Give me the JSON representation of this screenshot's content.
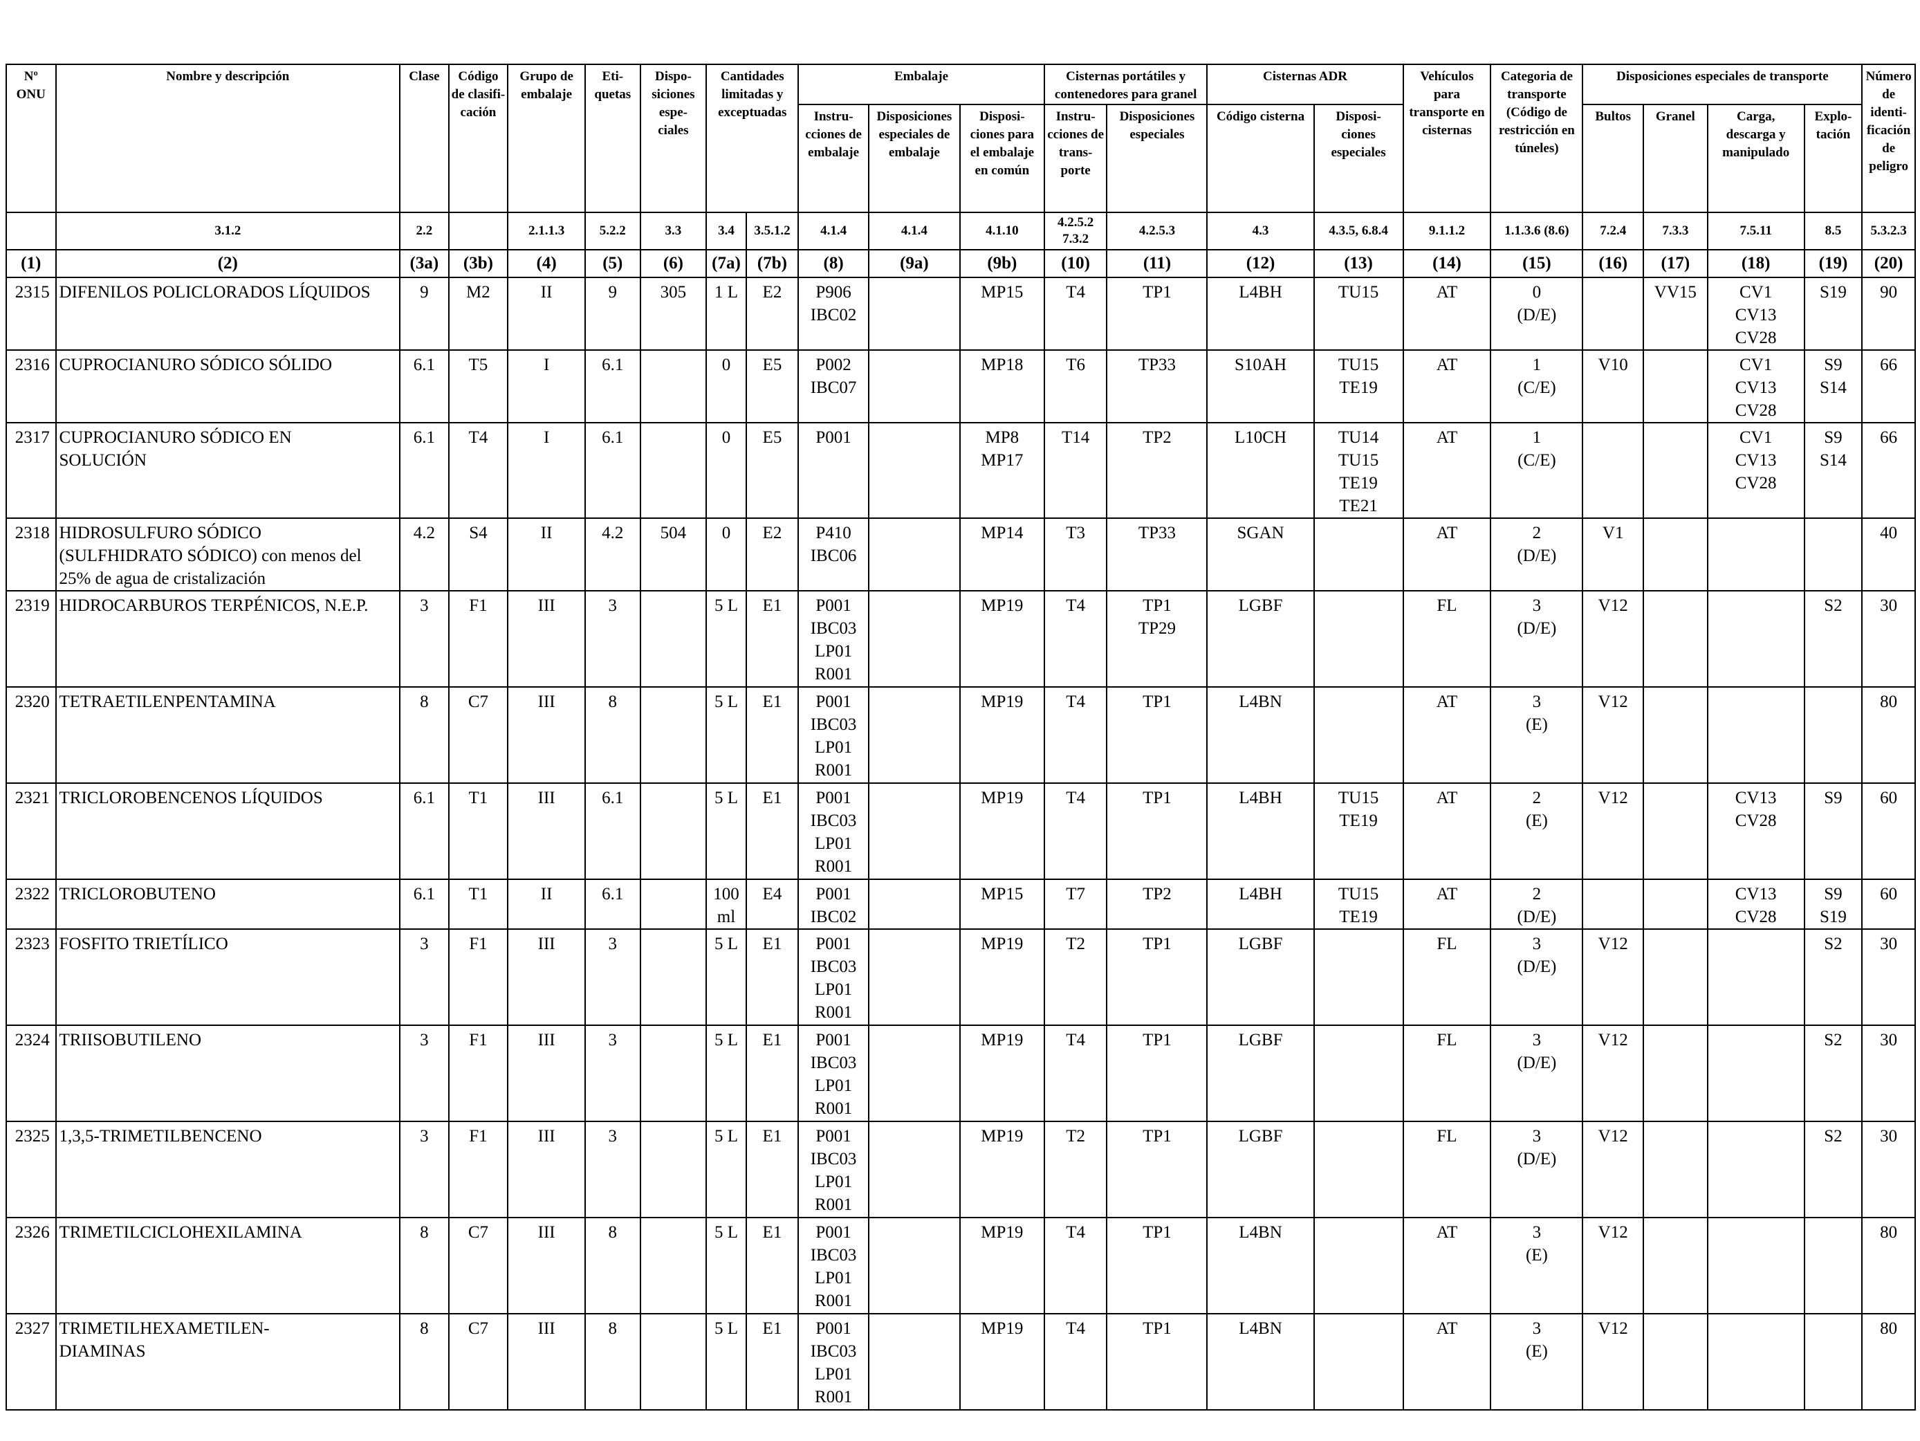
{
  "headers": {
    "no_onu": [
      "Nº",
      "ONU"
    ],
    "nombre": [
      "Nombre y descripción"
    ],
    "clase": [
      "Clase"
    ],
    "codigo": [
      "Código",
      "de clasifi-",
      "cación"
    ],
    "grupo": [
      "Grupo de",
      "embalaje"
    ],
    "etiquetas": [
      "Eti-",
      "quetas"
    ],
    "disposiciones": [
      "Dispo-",
      "siciones",
      "espe-",
      "ciales"
    ],
    "cantidades": [
      "Cantidades",
      "limitadas y",
      "exceptuadas"
    ],
    "embalaje": [
      "Embalaje"
    ],
    "instr_emb": [
      "Instru-",
      "cciones de",
      "embalaje"
    ],
    "disp_emb": [
      "Disposiciones",
      "especiales de",
      "embalaje"
    ],
    "disp_comun": [
      "Disposi-",
      "ciones para",
      "el embalaje",
      "en común"
    ],
    "cist_port": [
      "Cisternas portátiles y",
      "contenedores para granel"
    ],
    "instr_transp": [
      "Instru-",
      "cciones de",
      "trans-",
      "porte"
    ],
    "disp_esp_cist": [
      "Disposiciones",
      "especiales"
    ],
    "cist_adr": [
      "Cisternas ADR"
    ],
    "codigo_cisterna": [
      "Código cisterna"
    ],
    "disp_esp_adr": [
      "Disposi-",
      "ciones",
      "especiales"
    ],
    "vehiculos": [
      "Vehículos",
      "para",
      "transporte en",
      "cisternas"
    ],
    "categoria": [
      "Categoria de",
      "transporte",
      "(Código de",
      "restricción en",
      "túneles)"
    ],
    "disp_transp": [
      "Disposiciones especiales de transporte"
    ],
    "bultos": [
      "Bultos"
    ],
    "granel": [
      "Granel"
    ],
    "carga": [
      "Carga,",
      "descarga y",
      "manipulado"
    ],
    "explotacion": [
      "Explo-",
      "tación"
    ],
    "numero_peligro": [
      "Número",
      "de identi-",
      "ficación",
      "de peligro"
    ]
  },
  "sections": [
    "",
    "3.1.2",
    "2.2",
    "",
    "2.1.1.3",
    "5.2.2",
    "3.3",
    "3.4",
    "3.5.1.2",
    "4.1.4",
    "4.1.4",
    "4.1.10",
    "4.2.5.2 7.3.2",
    "4.2.5.3",
    "4.3",
    "4.3.5, 6.8.4",
    "9.1.1.2",
    "1.1.3.6 (8.6)",
    "7.2.4",
    "7.3.3",
    "7.5.11",
    "8.5",
    "5.3.2.3"
  ],
  "column_numbers": [
    "(1)",
    "(2)",
    "(3a)",
    "(3b)",
    "(4)",
    "(5)",
    "(6)",
    "(7a)",
    "(7b)",
    "(8)",
    "(9a)",
    "(9b)",
    "(10)",
    "(11)",
    "(12)",
    "(13)",
    "(14)",
    "(15)",
    "(16)",
    "(17)",
    "(18)",
    "(19)",
    "(20)"
  ],
  "rows": [
    {
      "cells": [
        [
          "2315"
        ],
        [
          "DIFENILOS POLICLORADOS LÍQUIDOS"
        ],
        [
          "9"
        ],
        [
          "M2"
        ],
        [
          "II"
        ],
        [
          "9"
        ],
        [
          "305"
        ],
        [
          "1 L"
        ],
        [
          "E2"
        ],
        [
          "P906",
          "IBC02"
        ],
        [
          ""
        ],
        [
          "MP15"
        ],
        [
          "T4"
        ],
        [
          "TP1"
        ],
        [
          "L4BH"
        ],
        [
          "TU15"
        ],
        [
          "AT"
        ],
        [
          "0",
          "(D/E)"
        ],
        [
          ""
        ],
        [
          "VV15"
        ],
        [
          "CV1",
          "CV13",
          "CV28"
        ],
        [
          "S19"
        ],
        [
          "90"
        ]
      ]
    },
    {
      "cells": [
        [
          "2316"
        ],
        [
          "CUPROCIANURO SÓDICO SÓLIDO"
        ],
        [
          "6.1"
        ],
        [
          "T5"
        ],
        [
          "I"
        ],
        [
          "6.1"
        ],
        [
          ""
        ],
        [
          "0"
        ],
        [
          "E5"
        ],
        [
          "P002",
          "IBC07"
        ],
        [
          ""
        ],
        [
          "MP18"
        ],
        [
          "T6"
        ],
        [
          "TP33"
        ],
        [
          "S10AH"
        ],
        [
          "TU15",
          "TE19"
        ],
        [
          "AT"
        ],
        [
          "1",
          "(C/E)"
        ],
        [
          "V10"
        ],
        [
          ""
        ],
        [
          "CV1",
          "CV13",
          "CV28"
        ],
        [
          "S9",
          "S14"
        ],
        [
          "66"
        ]
      ]
    },
    {
      "cells": [
        [
          "2317"
        ],
        [
          "CUPROCIANURO SÓDICO EN",
          "SOLUCIÓN"
        ],
        [
          "6.1"
        ],
        [
          "T4"
        ],
        [
          "I"
        ],
        [
          "6.1"
        ],
        [
          ""
        ],
        [
          "0"
        ],
        [
          "E5"
        ],
        [
          "P001"
        ],
        [
          ""
        ],
        [
          "MP8",
          "MP17"
        ],
        [
          "T14"
        ],
        [
          "TP2"
        ],
        [
          "L10CH"
        ],
        [
          "TU14",
          "TU15",
          "TE19",
          "TE21"
        ],
        [
          "AT"
        ],
        [
          "1",
          "(C/E)"
        ],
        [
          ""
        ],
        [
          ""
        ],
        [
          "CV1",
          "CV13",
          "CV28"
        ],
        [
          "S9",
          "S14"
        ],
        [
          "66"
        ]
      ]
    },
    {
      "cells": [
        [
          "2318"
        ],
        [
          "HIDROSULFURO SÓDICO",
          "(SULFHIDRATO SÓDICO) con menos del",
          "25% de agua de cristalización"
        ],
        [
          "4.2"
        ],
        [
          "S4"
        ],
        [
          "II"
        ],
        [
          "4.2"
        ],
        [
          "504"
        ],
        [
          "0"
        ],
        [
          "E2"
        ],
        [
          "P410",
          "IBC06"
        ],
        [
          ""
        ],
        [
          "MP14"
        ],
        [
          "T3"
        ],
        [
          "TP33"
        ],
        [
          "SGAN"
        ],
        [
          ""
        ],
        [
          "AT"
        ],
        [
          "2",
          "(D/E)"
        ],
        [
          "V1"
        ],
        [
          ""
        ],
        [
          ""
        ],
        [
          ""
        ],
        [
          "40"
        ]
      ]
    },
    {
      "cells": [
        [
          "2319"
        ],
        [
          "HIDROCARBUROS TERPÉNICOS, N.E.P."
        ],
        [
          "3"
        ],
        [
          "F1"
        ],
        [
          "III"
        ],
        [
          "3"
        ],
        [
          ""
        ],
        [
          "5 L"
        ],
        [
          "E1"
        ],
        [
          "P001",
          "IBC03",
          "LP01",
          "R001"
        ],
        [
          ""
        ],
        [
          "MP19"
        ],
        [
          "T4"
        ],
        [
          "TP1",
          "TP29"
        ],
        [
          "LGBF"
        ],
        [
          ""
        ],
        [
          "FL"
        ],
        [
          "3",
          "(D/E)"
        ],
        [
          "V12"
        ],
        [
          ""
        ],
        [
          ""
        ],
        [
          "S2"
        ],
        [
          "30"
        ]
      ]
    },
    {
      "cells": [
        [
          "2320"
        ],
        [
          "TETRAETILENPENTAMINA"
        ],
        [
          "8"
        ],
        [
          "C7"
        ],
        [
          "III"
        ],
        [
          "8"
        ],
        [
          ""
        ],
        [
          "5 L"
        ],
        [
          "E1"
        ],
        [
          "P001",
          "IBC03",
          "LP01",
          "R001"
        ],
        [
          ""
        ],
        [
          "MP19"
        ],
        [
          "T4"
        ],
        [
          "TP1"
        ],
        [
          "L4BN"
        ],
        [
          ""
        ],
        [
          "AT"
        ],
        [
          "3",
          "(E)"
        ],
        [
          "V12"
        ],
        [
          ""
        ],
        [
          ""
        ],
        [
          ""
        ],
        [
          "80"
        ]
      ]
    },
    {
      "cells": [
        [
          "2321"
        ],
        [
          "TRICLOROBENCENOS LÍQUIDOS"
        ],
        [
          "6.1"
        ],
        [
          "T1"
        ],
        [
          "III"
        ],
        [
          "6.1"
        ],
        [
          ""
        ],
        [
          "5 L"
        ],
        [
          "E1"
        ],
        [
          "P001",
          "IBC03",
          "LP01",
          "R001"
        ],
        [
          ""
        ],
        [
          "MP19"
        ],
        [
          "T4"
        ],
        [
          "TP1"
        ],
        [
          "L4BH"
        ],
        [
          "TU15",
          "TE19"
        ],
        [
          "AT"
        ],
        [
          "2",
          "(E)"
        ],
        [
          "V12"
        ],
        [
          ""
        ],
        [
          "CV13",
          "CV28"
        ],
        [
          "S9"
        ],
        [
          "60"
        ]
      ]
    },
    {
      "cells": [
        [
          "2322"
        ],
        [
          "TRICLOROBUTENO"
        ],
        [
          "6.1"
        ],
        [
          "T1"
        ],
        [
          "II"
        ],
        [
          "6.1"
        ],
        [
          ""
        ],
        [
          "100",
          "ml"
        ],
        [
          "E4"
        ],
        [
          "P001",
          "IBC02"
        ],
        [
          ""
        ],
        [
          "MP15"
        ],
        [
          "T7"
        ],
        [
          "TP2"
        ],
        [
          "L4BH"
        ],
        [
          "TU15",
          "TE19"
        ],
        [
          "AT"
        ],
        [
          "2",
          "(D/E)"
        ],
        [
          ""
        ],
        [
          ""
        ],
        [
          "CV13",
          "CV28"
        ],
        [
          "S9",
          "S19"
        ],
        [
          "60"
        ]
      ]
    },
    {
      "cells": [
        [
          "2323"
        ],
        [
          "FOSFITO TRIETÍLICO"
        ],
        [
          "3"
        ],
        [
          "F1"
        ],
        [
          "III"
        ],
        [
          "3"
        ],
        [
          ""
        ],
        [
          "5 L"
        ],
        [
          "E1"
        ],
        [
          "P001",
          "IBC03",
          "LP01",
          "R001"
        ],
        [
          ""
        ],
        [
          "MP19"
        ],
        [
          "T2"
        ],
        [
          "TP1"
        ],
        [
          "LGBF"
        ],
        [
          ""
        ],
        [
          "FL"
        ],
        [
          "3",
          "(D/E)"
        ],
        [
          "V12"
        ],
        [
          ""
        ],
        [
          ""
        ],
        [
          "S2"
        ],
        [
          "30"
        ]
      ]
    },
    {
      "cells": [
        [
          "2324"
        ],
        [
          "TRIISOBUTILENO"
        ],
        [
          "3"
        ],
        [
          "F1"
        ],
        [
          "III"
        ],
        [
          "3"
        ],
        [
          ""
        ],
        [
          "5 L"
        ],
        [
          "E1"
        ],
        [
          "P001",
          "IBC03",
          "LP01",
          "R001"
        ],
        [
          ""
        ],
        [
          "MP19"
        ],
        [
          "T4"
        ],
        [
          "TP1"
        ],
        [
          "LGBF"
        ],
        [
          ""
        ],
        [
          "FL"
        ],
        [
          "3",
          "(D/E)"
        ],
        [
          "V12"
        ],
        [
          ""
        ],
        [
          ""
        ],
        [
          "S2"
        ],
        [
          "30"
        ]
      ]
    },
    {
      "cells": [
        [
          "2325"
        ],
        [
          "1,3,5-TRIMETILBENCENO"
        ],
        [
          "3"
        ],
        [
          "F1"
        ],
        [
          "III"
        ],
        [
          "3"
        ],
        [
          ""
        ],
        [
          "5 L"
        ],
        [
          "E1"
        ],
        [
          "P001",
          "IBC03",
          "LP01",
          "R001"
        ],
        [
          ""
        ],
        [
          "MP19"
        ],
        [
          "T2"
        ],
        [
          "TP1"
        ],
        [
          "LGBF"
        ],
        [
          ""
        ],
        [
          "FL"
        ],
        [
          "3",
          "(D/E)"
        ],
        [
          "V12"
        ],
        [
          ""
        ],
        [
          ""
        ],
        [
          "S2"
        ],
        [
          "30"
        ]
      ]
    },
    {
      "cells": [
        [
          "2326"
        ],
        [
          "TRIMETILCICLOHEXILAMINA"
        ],
        [
          "8"
        ],
        [
          "C7"
        ],
        [
          "III"
        ],
        [
          "8"
        ],
        [
          ""
        ],
        [
          "5 L"
        ],
        [
          "E1"
        ],
        [
          "P001",
          "IBC03",
          "LP01",
          "R001"
        ],
        [
          ""
        ],
        [
          "MP19"
        ],
        [
          "T4"
        ],
        [
          "TP1"
        ],
        [
          "L4BN"
        ],
        [
          ""
        ],
        [
          "AT"
        ],
        [
          "3",
          "(E)"
        ],
        [
          "V12"
        ],
        [
          ""
        ],
        [
          ""
        ],
        [
          ""
        ],
        [
          "80"
        ]
      ]
    },
    {
      "cells": [
        [
          "2327"
        ],
        [
          "TRIMETILHEXAMETILEN-",
          "DIAMINAS"
        ],
        [
          "8"
        ],
        [
          "C7"
        ],
        [
          "III"
        ],
        [
          "8"
        ],
        [
          ""
        ],
        [
          "5 L"
        ],
        [
          "E1"
        ],
        [
          "P001",
          "IBC03",
          "LP01",
          "R001"
        ],
        [
          ""
        ],
        [
          "MP19"
        ],
        [
          "T4"
        ],
        [
          "TP1"
        ],
        [
          "L4BN"
        ],
        [
          ""
        ],
        [
          "AT"
        ],
        [
          "3",
          "(E)"
        ],
        [
          "V12"
        ],
        [
          ""
        ],
        [
          ""
        ],
        [
          ""
        ],
        [
          "80"
        ]
      ]
    }
  ]
}
